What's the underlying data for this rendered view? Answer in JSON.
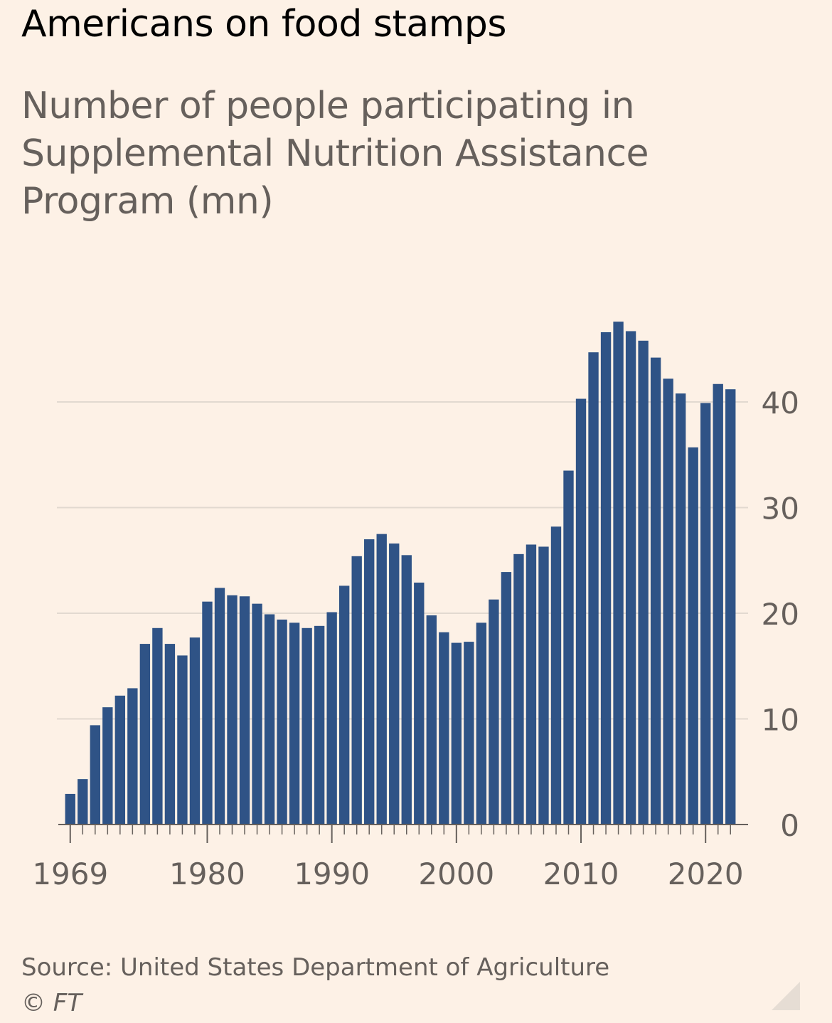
{
  "colors": {
    "background": "#fdf1e6",
    "bar": "#2f5386",
    "grid": "#e2d9d0",
    "axis": "#66605c",
    "tick_label": "#66605c"
  },
  "footer": {
    "source": "Source: United States Department of Agriculture",
    "copyright": "© FT"
  },
  "chart_data": {
    "type": "bar",
    "title": "Americans on food stamps",
    "subtitle": "Number of people participating in Supplemental Nutrition Assistance Program (mn)",
    "xlabel": "",
    "ylabel": "",
    "ylim": [
      0,
      48
    ],
    "yticks": [
      0,
      10,
      20,
      30,
      40
    ],
    "y_axis_side": "right",
    "grid": true,
    "x_tick_labels": [
      "1969",
      "1980",
      "1990",
      "2000",
      "2010",
      "2020"
    ],
    "categories": [
      "1969",
      "1970",
      "1971",
      "1972",
      "1973",
      "1974",
      "1975",
      "1976",
      "1977",
      "1978",
      "1979",
      "1980",
      "1981",
      "1982",
      "1983",
      "1984",
      "1985",
      "1986",
      "1987",
      "1988",
      "1989",
      "1990",
      "1991",
      "1992",
      "1993",
      "1994",
      "1995",
      "1996",
      "1997",
      "1998",
      "1999",
      "2000",
      "2001",
      "2002",
      "2003",
      "2004",
      "2005",
      "2006",
      "2007",
      "2008",
      "2009",
      "2010",
      "2011",
      "2012",
      "2013",
      "2014",
      "2015",
      "2016",
      "2017",
      "2018",
      "2019",
      "2020",
      "2021",
      "2022"
    ],
    "values": [
      2.9,
      4.3,
      9.4,
      11.1,
      12.2,
      12.9,
      17.1,
      18.6,
      17.1,
      16.0,
      17.7,
      21.1,
      22.4,
      21.7,
      21.6,
      20.9,
      19.9,
      19.4,
      19.1,
      18.6,
      18.8,
      20.1,
      22.6,
      25.4,
      27.0,
      27.5,
      26.6,
      25.5,
      22.9,
      19.8,
      18.2,
      17.2,
      17.3,
      19.1,
      21.3,
      23.9,
      25.6,
      26.5,
      26.3,
      28.2,
      33.5,
      40.3,
      44.7,
      46.6,
      47.6,
      46.7,
      45.8,
      44.2,
      42.2,
      40.8,
      35.7,
      39.9,
      41.7,
      41.2
    ]
  }
}
